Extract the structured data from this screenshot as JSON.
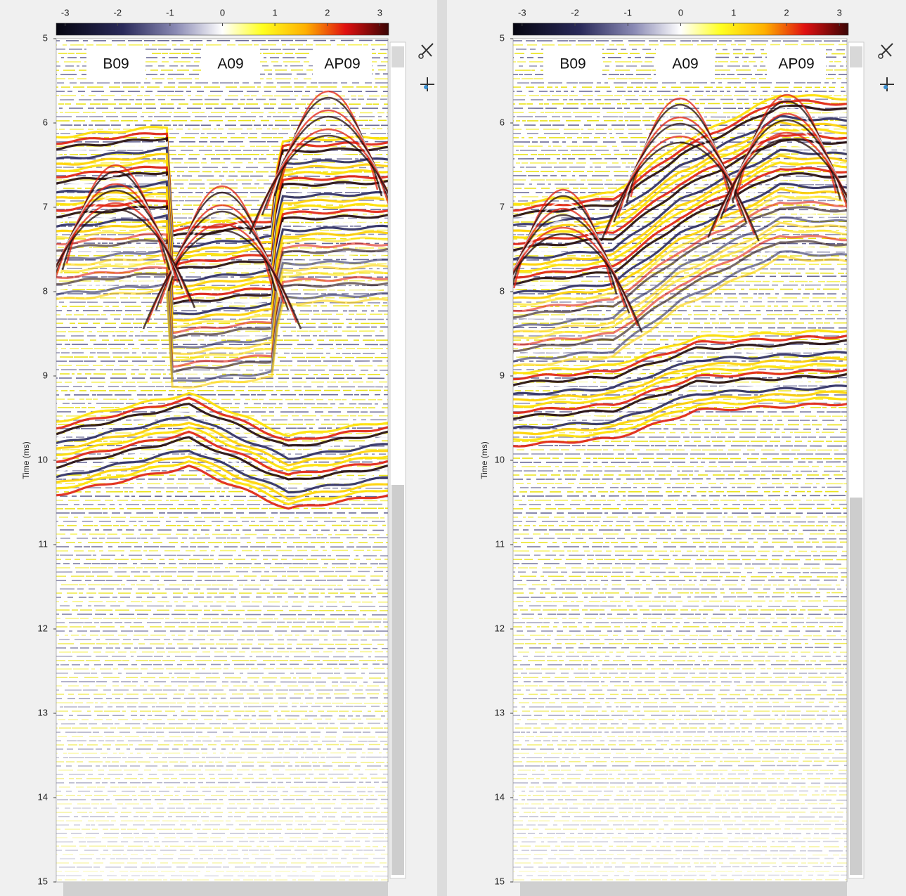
{
  "panels": [
    {
      "colorbar": {
        "clim": [
          -3.17,
          3.17
        ],
        "ticks": [
          -3,
          -2,
          -1,
          0,
          1,
          2,
          3
        ]
      },
      "ylabel": "Time (ms)",
      "ylim": [
        5,
        15
      ],
      "yticks": [
        5,
        6,
        7,
        8,
        9,
        10,
        11,
        12,
        13,
        14,
        15
      ],
      "labels": [
        "B09",
        "A09",
        "AP09"
      ]
    },
    {
      "colorbar": {
        "clim": [
          -3.17,
          3.17
        ],
        "ticks": [
          -3,
          -2,
          -1,
          0,
          1,
          2,
          3
        ]
      },
      "ylabel": "Time (ms)",
      "ylim": [
        5,
        15
      ],
      "yticks": [
        5,
        6,
        7,
        8,
        9,
        10,
        11,
        12,
        13,
        14,
        15
      ],
      "labels": [
        "B09",
        "A09",
        "AP09"
      ]
    }
  ]
}
